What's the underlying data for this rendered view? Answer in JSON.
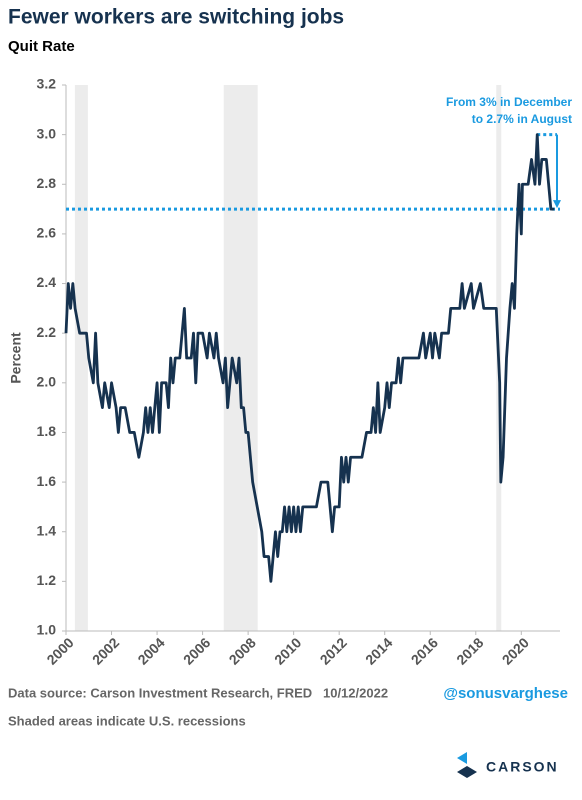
{
  "chart_data": {
    "type": "line",
    "title": "Fewer workers are switching jobs",
    "subtitle": "Quit Rate",
    "y_label": "Percent",
    "x": [
      2000.0,
      2000.1,
      2000.2,
      2000.3,
      2000.4,
      2000.6,
      2000.9,
      2001.0,
      2001.2,
      2001.3,
      2001.4,
      2001.6,
      2001.7,
      2001.9,
      2002.0,
      2002.2,
      2002.3,
      2002.4,
      2002.6,
      2002.8,
      2003.0,
      2003.2,
      2003.4,
      2003.5,
      2003.6,
      2003.7,
      2003.8,
      2004.0,
      2004.1,
      2004.2,
      2004.4,
      2004.5,
      2004.6,
      2004.7,
      2004.8,
      2005.0,
      2005.1,
      2005.2,
      2005.3,
      2005.5,
      2005.6,
      2005.7,
      2005.8,
      2006.0,
      2006.2,
      2006.3,
      2006.5,
      2006.6,
      2006.7,
      2006.9,
      2007.0,
      2007.1,
      2007.2,
      2007.3,
      2007.5,
      2007.6,
      2007.7,
      2007.8,
      2007.9,
      2008.0,
      2008.2,
      2008.4,
      2008.6,
      2008.7,
      2008.9,
      2009.0,
      2009.1,
      2009.2,
      2009.3,
      2009.4,
      2009.5,
      2009.6,
      2009.7,
      2009.8,
      2009.9,
      2010.0,
      2010.1,
      2010.2,
      2010.3,
      2010.4,
      2010.6,
      2010.8,
      2011.0,
      2011.2,
      2011.5,
      2011.6,
      2011.7,
      2011.8,
      2012.0,
      2012.1,
      2012.2,
      2012.3,
      2012.4,
      2012.5,
      2012.8,
      2013.0,
      2013.2,
      2013.4,
      2013.5,
      2013.6,
      2013.7,
      2013.8,
      2014.0,
      2014.1,
      2014.2,
      2014.3,
      2014.5,
      2014.6,
      2014.7,
      2014.8,
      2015.0,
      2015.5,
      2015.7,
      2015.8,
      2016.0,
      2016.1,
      2016.2,
      2016.4,
      2016.5,
      2016.8,
      2016.9,
      2017.3,
      2017.4,
      2017.5,
      2017.8,
      2017.9,
      2018.2,
      2018.35,
      2018.9,
      2019.05,
      2019.1,
      2019.2,
      2019.35,
      2019.5,
      2019.6,
      2019.7,
      2019.8,
      2019.9,
      2020.0,
      2020.05,
      2020.3,
      2020.45,
      2020.6,
      2020.7,
      2020.8,
      2020.9,
      2021.1,
      2021.2,
      2021.3,
      2021.45
    ],
    "series": [
      {
        "name": "Quit Rate",
        "color": "#16324f",
        "values": [
          2.2,
          2.4,
          2.3,
          2.4,
          2.3,
          2.2,
          2.2,
          2.1,
          2.0,
          2.2,
          2.0,
          1.9,
          2.0,
          1.9,
          2.0,
          1.9,
          1.8,
          1.9,
          1.9,
          1.8,
          1.8,
          1.7,
          1.8,
          1.9,
          1.8,
          1.9,
          1.8,
          2.0,
          1.8,
          2.0,
          2.0,
          1.9,
          2.1,
          2.0,
          2.1,
          2.1,
          2.2,
          2.3,
          2.1,
          2.1,
          2.2,
          2.0,
          2.2,
          2.2,
          2.1,
          2.2,
          2.1,
          2.2,
          2.1,
          2.0,
          2.1,
          1.9,
          2.0,
          2.1,
          2.0,
          2.1,
          1.9,
          1.9,
          1.8,
          1.8,
          1.6,
          1.5,
          1.4,
          1.3,
          1.3,
          1.2,
          1.3,
          1.4,
          1.3,
          1.4,
          1.4,
          1.5,
          1.4,
          1.5,
          1.4,
          1.5,
          1.4,
          1.5,
          1.4,
          1.5,
          1.5,
          1.5,
          1.5,
          1.6,
          1.6,
          1.5,
          1.4,
          1.5,
          1.5,
          1.7,
          1.6,
          1.7,
          1.6,
          1.7,
          1.7,
          1.7,
          1.8,
          1.8,
          1.9,
          1.8,
          2.0,
          1.8,
          1.9,
          2.0,
          1.9,
          2.0,
          2.0,
          2.1,
          2.0,
          2.1,
          2.1,
          2.1,
          2.2,
          2.1,
          2.2,
          2.1,
          2.2,
          2.1,
          2.2,
          2.2,
          2.3,
          2.3,
          2.4,
          2.3,
          2.4,
          2.3,
          2.4,
          2.3,
          2.3,
          2.0,
          1.6,
          1.7,
          2.1,
          2.3,
          2.4,
          2.3,
          2.6,
          2.8,
          2.6,
          2.8,
          2.8,
          2.9,
          2.8,
          3.0,
          2.8,
          2.9,
          2.9,
          2.8,
          2.7,
          2.7
        ]
      }
    ],
    "xlim": [
      2000,
      2021.7
    ],
    "xticks": [
      2000,
      2002,
      2004,
      2006,
      2008,
      2010,
      2012,
      2014,
      2016,
      2018,
      2020
    ],
    "ylim": [
      1,
      3.2
    ],
    "yticks": [
      {
        "value": 1,
        "label": "1.0"
      },
      1.2,
      1.4,
      1.6,
      1.8,
      {
        "value": 2,
        "label": "2.0"
      },
      2.2,
      2.4,
      2.6,
      2.8,
      {
        "value": 3,
        "label": "3.0"
      },
      3.2
    ],
    "recessions": [
      [
        2000.39,
        2000.96
      ],
      [
        2006.93,
        2008.42
      ],
      [
        2018.9,
        2019.12
      ]
    ],
    "shade_note": "Shaded areas indicate U.S. recessions",
    "reference_line": 2.7,
    "reference_start": 3,
    "annotation": [
      "From 3% in December",
      "to 2.7% in August"
    ],
    "source": "Data source: Carson Investment Research, FRED   10/12/2022",
    "handle": "@sonusvarghese",
    "brand": "CARSON"
  }
}
